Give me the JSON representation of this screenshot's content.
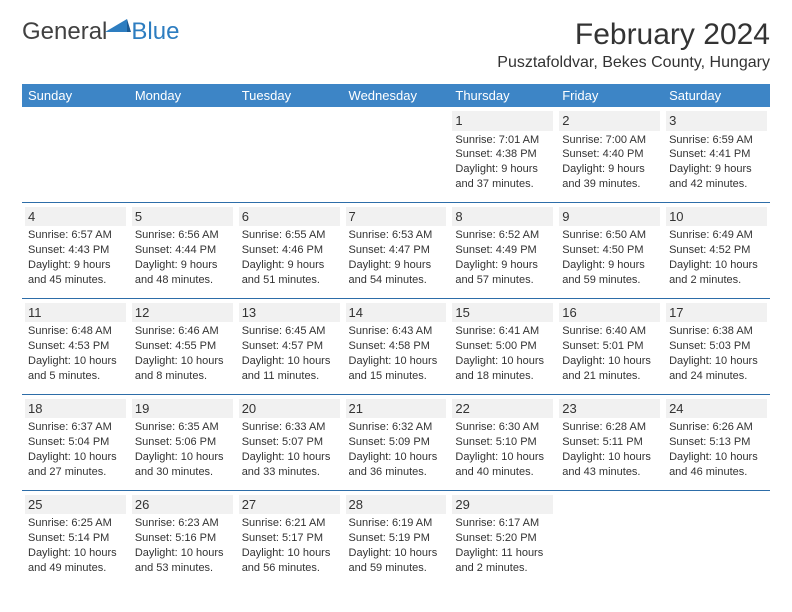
{
  "logo": {
    "general": "General",
    "blue": "Blue"
  },
  "title": "February 2024",
  "location": "Pusztafoldvar, Bekes County, Hungary",
  "header_bg": "#3d85c6",
  "divider_color": "#2d6da8",
  "daynum_bg": "#f1f1f1",
  "day_headers": [
    "Sunday",
    "Monday",
    "Tuesday",
    "Wednesday",
    "Thursday",
    "Friday",
    "Saturday"
  ],
  "weeks": [
    [
      {
        "n": "",
        "sr": "",
        "ss": "",
        "dl": ""
      },
      {
        "n": "",
        "sr": "",
        "ss": "",
        "dl": ""
      },
      {
        "n": "",
        "sr": "",
        "ss": "",
        "dl": ""
      },
      {
        "n": "",
        "sr": "",
        "ss": "",
        "dl": ""
      },
      {
        "n": "1",
        "sr": "Sunrise: 7:01 AM",
        "ss": "Sunset: 4:38 PM",
        "dl": "Daylight: 9 hours and 37 minutes."
      },
      {
        "n": "2",
        "sr": "Sunrise: 7:00 AM",
        "ss": "Sunset: 4:40 PM",
        "dl": "Daylight: 9 hours and 39 minutes."
      },
      {
        "n": "3",
        "sr": "Sunrise: 6:59 AM",
        "ss": "Sunset: 4:41 PM",
        "dl": "Daylight: 9 hours and 42 minutes."
      }
    ],
    [
      {
        "n": "4",
        "sr": "Sunrise: 6:57 AM",
        "ss": "Sunset: 4:43 PM",
        "dl": "Daylight: 9 hours and 45 minutes."
      },
      {
        "n": "5",
        "sr": "Sunrise: 6:56 AM",
        "ss": "Sunset: 4:44 PM",
        "dl": "Daylight: 9 hours and 48 minutes."
      },
      {
        "n": "6",
        "sr": "Sunrise: 6:55 AM",
        "ss": "Sunset: 4:46 PM",
        "dl": "Daylight: 9 hours and 51 minutes."
      },
      {
        "n": "7",
        "sr": "Sunrise: 6:53 AM",
        "ss": "Sunset: 4:47 PM",
        "dl": "Daylight: 9 hours and 54 minutes."
      },
      {
        "n": "8",
        "sr": "Sunrise: 6:52 AM",
        "ss": "Sunset: 4:49 PM",
        "dl": "Daylight: 9 hours and 57 minutes."
      },
      {
        "n": "9",
        "sr": "Sunrise: 6:50 AM",
        "ss": "Sunset: 4:50 PM",
        "dl": "Daylight: 9 hours and 59 minutes."
      },
      {
        "n": "10",
        "sr": "Sunrise: 6:49 AM",
        "ss": "Sunset: 4:52 PM",
        "dl": "Daylight: 10 hours and 2 minutes."
      }
    ],
    [
      {
        "n": "11",
        "sr": "Sunrise: 6:48 AM",
        "ss": "Sunset: 4:53 PM",
        "dl": "Daylight: 10 hours and 5 minutes."
      },
      {
        "n": "12",
        "sr": "Sunrise: 6:46 AM",
        "ss": "Sunset: 4:55 PM",
        "dl": "Daylight: 10 hours and 8 minutes."
      },
      {
        "n": "13",
        "sr": "Sunrise: 6:45 AM",
        "ss": "Sunset: 4:57 PM",
        "dl": "Daylight: 10 hours and 11 minutes."
      },
      {
        "n": "14",
        "sr": "Sunrise: 6:43 AM",
        "ss": "Sunset: 4:58 PM",
        "dl": "Daylight: 10 hours and 15 minutes."
      },
      {
        "n": "15",
        "sr": "Sunrise: 6:41 AM",
        "ss": "Sunset: 5:00 PM",
        "dl": "Daylight: 10 hours and 18 minutes."
      },
      {
        "n": "16",
        "sr": "Sunrise: 6:40 AM",
        "ss": "Sunset: 5:01 PM",
        "dl": "Daylight: 10 hours and 21 minutes."
      },
      {
        "n": "17",
        "sr": "Sunrise: 6:38 AM",
        "ss": "Sunset: 5:03 PM",
        "dl": "Daylight: 10 hours and 24 minutes."
      }
    ],
    [
      {
        "n": "18",
        "sr": "Sunrise: 6:37 AM",
        "ss": "Sunset: 5:04 PM",
        "dl": "Daylight: 10 hours and 27 minutes."
      },
      {
        "n": "19",
        "sr": "Sunrise: 6:35 AM",
        "ss": "Sunset: 5:06 PM",
        "dl": "Daylight: 10 hours and 30 minutes."
      },
      {
        "n": "20",
        "sr": "Sunrise: 6:33 AM",
        "ss": "Sunset: 5:07 PM",
        "dl": "Daylight: 10 hours and 33 minutes."
      },
      {
        "n": "21",
        "sr": "Sunrise: 6:32 AM",
        "ss": "Sunset: 5:09 PM",
        "dl": "Daylight: 10 hours and 36 minutes."
      },
      {
        "n": "22",
        "sr": "Sunrise: 6:30 AM",
        "ss": "Sunset: 5:10 PM",
        "dl": "Daylight: 10 hours and 40 minutes."
      },
      {
        "n": "23",
        "sr": "Sunrise: 6:28 AM",
        "ss": "Sunset: 5:11 PM",
        "dl": "Daylight: 10 hours and 43 minutes."
      },
      {
        "n": "24",
        "sr": "Sunrise: 6:26 AM",
        "ss": "Sunset: 5:13 PM",
        "dl": "Daylight: 10 hours and 46 minutes."
      }
    ],
    [
      {
        "n": "25",
        "sr": "Sunrise: 6:25 AM",
        "ss": "Sunset: 5:14 PM",
        "dl": "Daylight: 10 hours and 49 minutes."
      },
      {
        "n": "26",
        "sr": "Sunrise: 6:23 AM",
        "ss": "Sunset: 5:16 PM",
        "dl": "Daylight: 10 hours and 53 minutes."
      },
      {
        "n": "27",
        "sr": "Sunrise: 6:21 AM",
        "ss": "Sunset: 5:17 PM",
        "dl": "Daylight: 10 hours and 56 minutes."
      },
      {
        "n": "28",
        "sr": "Sunrise: 6:19 AM",
        "ss": "Sunset: 5:19 PM",
        "dl": "Daylight: 10 hours and 59 minutes."
      },
      {
        "n": "29",
        "sr": "Sunrise: 6:17 AM",
        "ss": "Sunset: 5:20 PM",
        "dl": "Daylight: 11 hours and 2 minutes."
      },
      {
        "n": "",
        "sr": "",
        "ss": "",
        "dl": ""
      },
      {
        "n": "",
        "sr": "",
        "ss": "",
        "dl": ""
      }
    ]
  ]
}
